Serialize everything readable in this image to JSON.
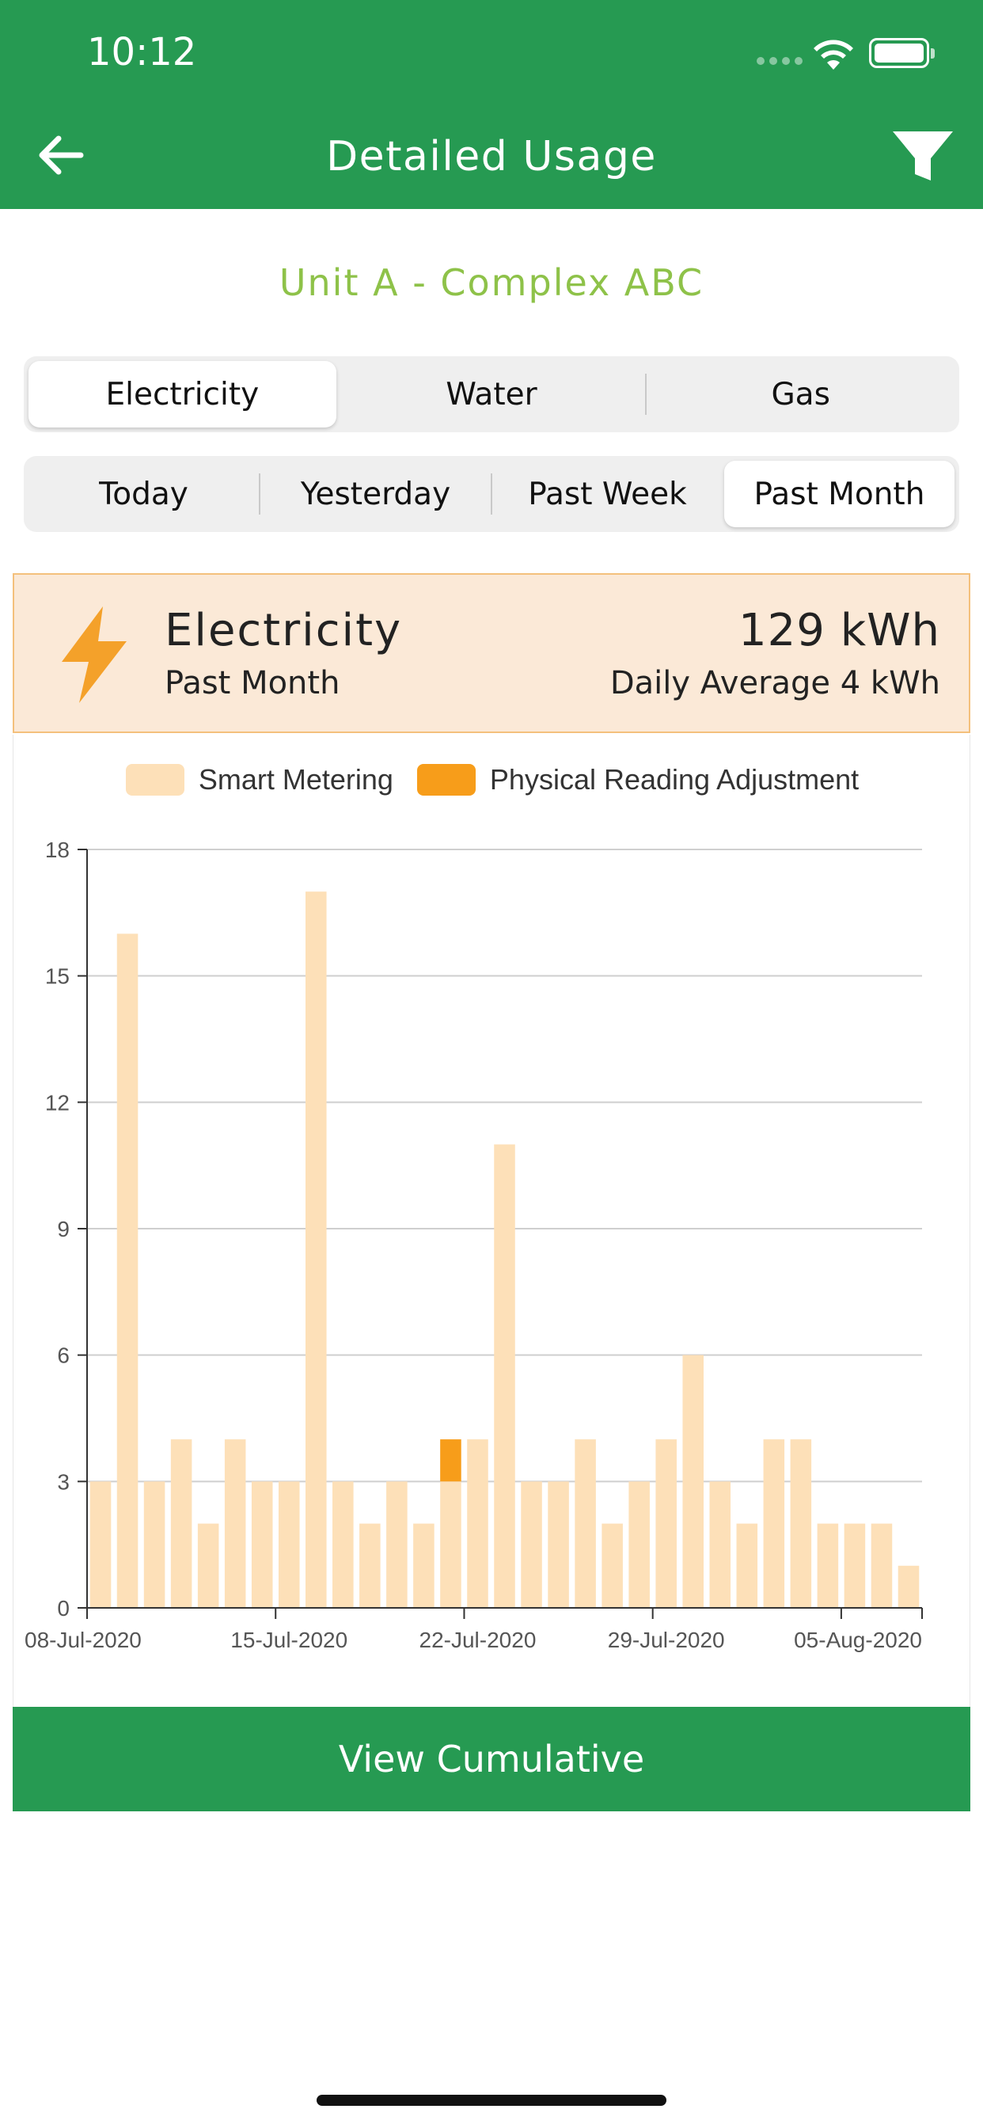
{
  "status_bar": {
    "time": "10:12"
  },
  "header": {
    "title": "Detailed Usage"
  },
  "property": {
    "name": "Unit A - Complex ABC"
  },
  "utility_tabs": [
    {
      "label": "Electricity",
      "active": true
    },
    {
      "label": "Water",
      "active": false
    },
    {
      "label": "Gas",
      "active": false
    }
  ],
  "period_tabs": [
    {
      "label": "Today",
      "active": false
    },
    {
      "label": "Yesterday",
      "active": false
    },
    {
      "label": "Past Week",
      "active": false
    },
    {
      "label": "Past Month",
      "active": true
    }
  ],
  "summary": {
    "title": "Electricity",
    "period": "Past Month",
    "total": "129 kWh",
    "daily_average": "Daily Average 4 kWh"
  },
  "colors": {
    "brand_green": "#269a52",
    "accent_light_green": "#8ec249",
    "smart_metering": "#fde0b8",
    "physical_adjustment": "#f79d1a",
    "card_bg": "#fbe9d7"
  },
  "chart_data": {
    "type": "bar",
    "stacked": true,
    "title": "",
    "xlabel": "",
    "ylabel": "",
    "ylim": [
      0,
      18
    ],
    "yticks": [
      0,
      3,
      6,
      9,
      12,
      15,
      18
    ],
    "grid": true,
    "legend_position": "top",
    "categories": [
      "08-Jul-2020",
      "09-Jul-2020",
      "10-Jul-2020",
      "11-Jul-2020",
      "12-Jul-2020",
      "13-Jul-2020",
      "14-Jul-2020",
      "15-Jul-2020",
      "16-Jul-2020",
      "17-Jul-2020",
      "18-Jul-2020",
      "19-Jul-2020",
      "20-Jul-2020",
      "21-Jul-2020",
      "22-Jul-2020",
      "23-Jul-2020",
      "24-Jul-2020",
      "25-Jul-2020",
      "26-Jul-2020",
      "27-Jul-2020",
      "28-Jul-2020",
      "29-Jul-2020",
      "30-Jul-2020",
      "31-Jul-2020",
      "01-Aug-2020",
      "02-Aug-2020",
      "03-Aug-2020",
      "04-Aug-2020",
      "05-Aug-2020",
      "06-Aug-2020",
      "07-Aug-2020"
    ],
    "xtick_labels": [
      "08-Jul-2020",
      "15-Jul-2020",
      "22-Jul-2020",
      "29-Jul-2020",
      "05-Aug-2020"
    ],
    "series": [
      {
        "name": "Smart Metering",
        "color": "#fde0b8",
        "values": [
          3,
          16,
          3,
          4,
          2,
          4,
          3,
          3,
          17,
          3,
          2,
          3,
          2,
          3,
          4,
          11,
          3,
          3,
          4,
          2,
          3,
          4,
          6,
          3,
          2,
          4,
          4,
          2,
          2,
          2,
          1
        ]
      },
      {
        "name": "Physical Reading Adjustment",
        "color": "#f79d1a",
        "values": [
          0,
          0,
          0,
          0,
          0,
          0,
          0,
          0,
          0,
          0,
          0,
          0,
          0,
          1,
          0,
          0,
          0,
          0,
          0,
          0,
          0,
          0,
          0,
          0,
          0,
          0,
          0,
          0,
          0,
          0,
          0
        ]
      }
    ]
  },
  "actions": {
    "view_cumulative": "View Cumulative"
  }
}
